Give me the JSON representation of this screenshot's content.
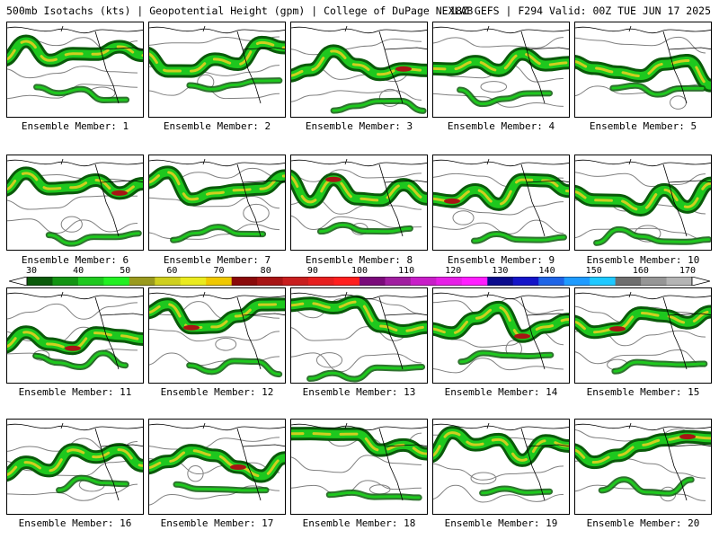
{
  "header": {
    "left": "500mb Isotachs (kts) | Geopotential Height (gpm) | College of DuPage NEXLAB",
    "right": "18Z GEFS | F294 Valid: 00Z TUE JUN 17 2025"
  },
  "colorbar": {
    "labels": [
      "30",
      "40",
      "50",
      "60",
      "70",
      "80",
      "90",
      "100",
      "110",
      "120",
      "130",
      "140",
      "150",
      "160",
      "170"
    ],
    "colors": [
      "#0a5a0a",
      "#139413",
      "#1ec81e",
      "#22f022",
      "#9a9a1e",
      "#cfcf1e",
      "#eaea1e",
      "#f0c800",
      "#8a0a0a",
      "#a81414",
      "#c81e1e",
      "#e61e1e",
      "#ff1e1e",
      "#7a0a7a",
      "#a01ea0",
      "#c81ec8",
      "#e61ee6",
      "#ff1eff",
      "#0a0a8c",
      "#1414c8",
      "#1e64e6",
      "#1e9bff",
      "#1ec8ff",
      "#6e6e6e",
      "#969696",
      "#b4b4b4"
    ]
  },
  "colors": {
    "jet_dark": "#0a5a0a",
    "jet_green": "#1ec81e",
    "jet_yellow": "#cfcf1e",
    "jet_red": "#a81414",
    "contour": "#808080",
    "coast": "#000000"
  },
  "members": [
    {
      "label": "Ensemble Member: 1"
    },
    {
      "label": "Ensemble Member: 2"
    },
    {
      "label": "Ensemble Member: 3"
    },
    {
      "label": "Ensemble Member: 4"
    },
    {
      "label": "Ensemble Member: 5"
    },
    {
      "label": "Ensemble Member: 6"
    },
    {
      "label": "Ensemble Member: 7"
    },
    {
      "label": "Ensemble Member: 8"
    },
    {
      "label": "Ensemble Member: 9"
    },
    {
      "label": "Ensemble Member: 10"
    },
    {
      "label": "Ensemble Member: 11"
    },
    {
      "label": "Ensemble Member: 12"
    },
    {
      "label": "Ensemble Member: 13"
    },
    {
      "label": "Ensemble Member: 14"
    },
    {
      "label": "Ensemble Member: 15"
    },
    {
      "label": "Ensemble Member: 16"
    },
    {
      "label": "Ensemble Member: 17"
    },
    {
      "label": "Ensemble Member: 18"
    },
    {
      "label": "Ensemble Member: 19"
    },
    {
      "label": "Ensemble Member: 20"
    }
  ]
}
